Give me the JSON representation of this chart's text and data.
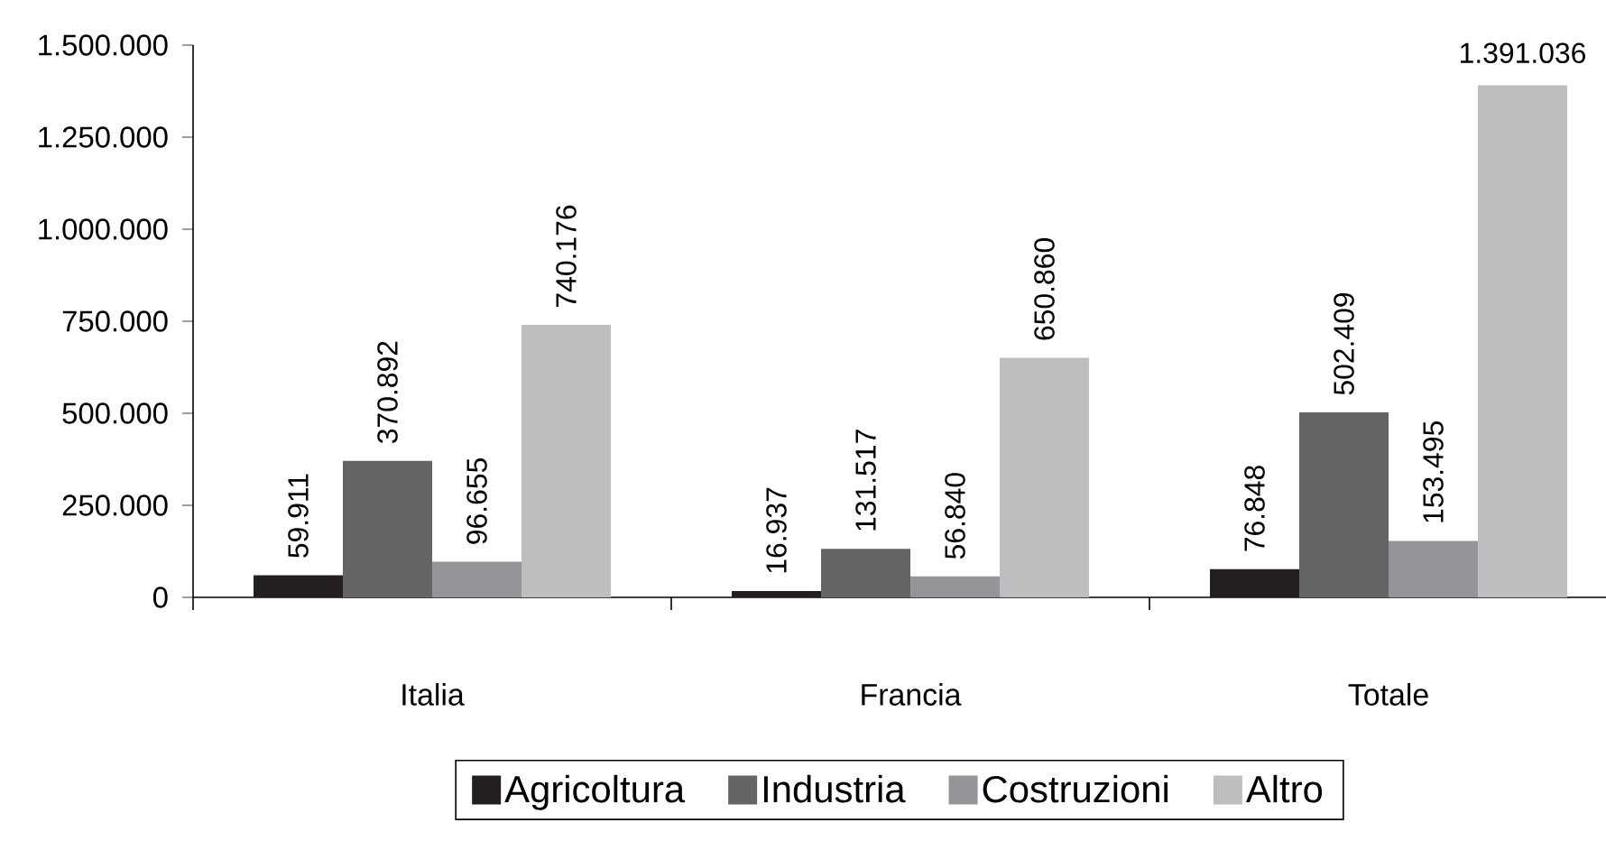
{
  "chart_data": {
    "type": "bar",
    "categories": [
      "Italia",
      "Francia",
      "Totale"
    ],
    "series": [
      {
        "name": "Agricoltura",
        "color": "#231f20",
        "values": [
          59911,
          16937,
          76848
        ],
        "value_labels": [
          "59.911",
          "16.937",
          "76.848"
        ]
      },
      {
        "name": "Industria",
        "color": "#636466",
        "values": [
          370892,
          131517,
          502409
        ],
        "value_labels": [
          "370.892",
          "131.517",
          "502.409"
        ]
      },
      {
        "name": "Costruzioni",
        "color": "#939598",
        "values": [
          96655,
          56840,
          153495
        ],
        "value_labels": [
          "96.655",
          "56.840",
          "153.495"
        ]
      },
      {
        "name": "Altro",
        "color": "#bcbec0",
        "values": [
          740176,
          650860,
          1391036
        ],
        "value_labels": [
          "740.176",
          "650.860",
          "1.391.036"
        ]
      }
    ],
    "ylim": [
      0,
      1500000
    ],
    "yticks": [
      0,
      {
        "value": 250000,
        "label": "250.000"
      },
      {
        "value": 500000,
        "label": "500.000"
      },
      {
        "value": 750000,
        "label": "750.000"
      },
      {
        "value": 1000000,
        "label": "1.000.000"
      },
      {
        "value": 1250000,
        "label": "1.250.000"
      },
      {
        "value": 1500000,
        "label": "1.500.000"
      }
    ],
    "legend": "bottom"
  }
}
